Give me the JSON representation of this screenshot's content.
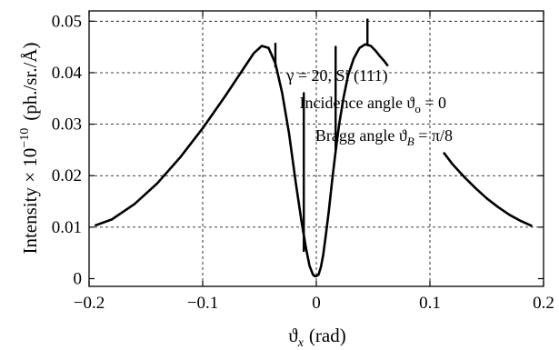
{
  "chart_data": {
    "type": "line",
    "xlabel_symbol": "ϑ",
    "xlabel_sub": "x",
    "xlabel_unit": "(rad)",
    "ylabel_main": "Intensity × 10",
    "ylabel_exp": "−10",
    "ylabel_unit": "(ph./sr./Å)",
    "xlim": [
      -0.2,
      0.2
    ],
    "ylim": [
      -0.0015,
      0.052
    ],
    "grid": true,
    "x_ticks": [
      {
        "value": -0.2,
        "label": "−0.2"
      },
      {
        "value": -0.1,
        "label": "−0.1"
      },
      {
        "value": 0,
        "label": "0"
      },
      {
        "value": 0.1,
        "label": "0.1"
      },
      {
        "value": 0.2,
        "label": "0.2"
      }
    ],
    "y_ticks": [
      {
        "value": 0,
        "label": "0"
      },
      {
        "value": 0.01,
        "label": "0.01"
      },
      {
        "value": 0.02,
        "label": "0.02"
      },
      {
        "value": 0.03,
        "label": "0.03"
      },
      {
        "value": 0.04,
        "label": "0.04"
      },
      {
        "value": 0.05,
        "label": "0.05"
      }
    ],
    "series": [
      {
        "x": [
          -0.195,
          -0.18,
          -0.16,
          -0.14,
          -0.12,
          -0.1,
          -0.08,
          -0.065,
          -0.055,
          -0.048,
          -0.042,
          -0.036,
          -0.03,
          -0.024,
          -0.018,
          -0.013,
          -0.009,
          -0.006,
          -0.003,
          -0.0015,
          0,
          0.002,
          0.004,
          0.006,
          0.008,
          0.011,
          0.014,
          0.017,
          0.02,
          0.024,
          0.028,
          0.033,
          0.038,
          0.043,
          0.048,
          0.052,
          0.056,
          0.06,
          0.063
        ],
        "y": [
          0.0103,
          0.0115,
          0.0145,
          0.0185,
          0.0235,
          0.0292,
          0.0355,
          0.0405,
          0.0438,
          0.0452,
          0.0448,
          0.0418,
          0.036,
          0.0282,
          0.0185,
          0.011,
          0.0058,
          0.0025,
          0.0008,
          0.0005,
          0.0005,
          0.0008,
          0.0022,
          0.0045,
          0.0078,
          0.0132,
          0.0192,
          0.0248,
          0.0298,
          0.0352,
          0.0395,
          0.0428,
          0.0448,
          0.0455,
          0.0452,
          0.0443,
          0.0432,
          0.0422,
          0.0413
        ]
      },
      {
        "x": [
          0.112,
          0.12,
          0.13,
          0.14,
          0.15,
          0.16,
          0.17,
          0.18,
          0.19
        ],
        "y": [
          0.0245,
          0.0222,
          0.0198,
          0.0176,
          0.0156,
          0.0139,
          0.0124,
          0.0112,
          0.0102
        ]
      }
    ],
    "spikes": [
      {
        "x": -0.036,
        "y_from": 0.041,
        "y_to": 0.0458
      },
      {
        "x": -0.011,
        "y_from": 0.0052,
        "y_to": 0.0362
      },
      {
        "x": 0.017,
        "y_from": 0.0248,
        "y_to": 0.0452
      },
      {
        "x": 0.045,
        "y_from": 0.0455,
        "y_to": 0.0505
      }
    ],
    "annotations": [
      "γ = 20, Si (111)",
      "Incidence angle ϑ",
      "o",
      " = 0",
      "Bragg angle ϑ",
      "B",
      " = π/8"
    ]
  }
}
